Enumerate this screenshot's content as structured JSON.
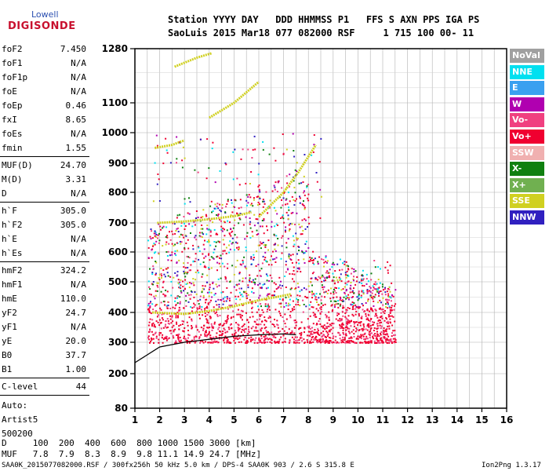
{
  "logo": {
    "line1": "Lowell",
    "line2": "DIGISONDE"
  },
  "header": {
    "line1": "Station YYYY DAY   DDD HHMMSS P1   FFS S AXN PPS IGA PS",
    "line2": "SaoLuis 2015 Mar18 077 082000 RSF     1 715 100 00- 11"
  },
  "params_a": [
    {
      "label": "foF2",
      "value": "7.450"
    },
    {
      "label": "foF1",
      "value": "N/A"
    },
    {
      "label": "foF1p",
      "value": "N/A"
    },
    {
      "label": "foE",
      "value": "N/A"
    },
    {
      "label": "foEp",
      "value": "0.46"
    },
    {
      "label": "fxI",
      "value": "8.65"
    },
    {
      "label": "foEs",
      "value": "N/A"
    },
    {
      "label": "fmin",
      "value": "1.55"
    }
  ],
  "params_b": [
    {
      "label": "MUF(D)",
      "value": "24.70"
    },
    {
      "label": "M(D)",
      "value": "3.31"
    },
    {
      "label": "D",
      "value": "N/A"
    }
  ],
  "params_c": [
    {
      "label": "h`F",
      "value": "305.0"
    },
    {
      "label": "h`F2",
      "value": "305.0"
    },
    {
      "label": "h`E",
      "value": "N/A"
    },
    {
      "label": "h`Es",
      "value": "N/A"
    }
  ],
  "params_d": [
    {
      "label": "hmF2",
      "value": "324.2"
    },
    {
      "label": "hmF1",
      "value": "N/A"
    },
    {
      "label": "hmE",
      "value": "110.0"
    },
    {
      "label": "yF2",
      "value": "24.7"
    },
    {
      "label": "yF1",
      "value": "N/A"
    },
    {
      "label": "yE",
      "value": "20.0"
    },
    {
      "label": "B0",
      "value": "37.7"
    },
    {
      "label": "B1",
      "value": "1.00"
    }
  ],
  "clevel": {
    "label": "C-level",
    "value": "44"
  },
  "scaling": [
    "Auto:",
    "Artist5",
    "500200"
  ],
  "legend": [
    {
      "label": "NoVal",
      "color": "#a0a0a0"
    },
    {
      "label": "NNE",
      "color": "#00e0f0"
    },
    {
      "label": "E",
      "color": "#3aa0f0"
    },
    {
      "label": "W",
      "color": "#b000b0"
    },
    {
      "label": "Vo-",
      "color": "#f04080"
    },
    {
      "label": "Vo+",
      "color": "#f00030"
    },
    {
      "label": "SSW",
      "color": "#f0b0b0"
    },
    {
      "label": "X-",
      "color": "#108010"
    },
    {
      "label": "X+",
      "color": "#70b050"
    },
    {
      "label": "SSE",
      "color": "#d0d020"
    },
    {
      "label": "NNW",
      "color": "#3020c0"
    }
  ],
  "yticks": [
    "1280",
    "1100",
    "1000",
    "900",
    "800",
    "700",
    "600",
    "500",
    "400",
    "300",
    "200",
    "80"
  ],
  "xticks": [
    "1",
    "2",
    "3",
    "4",
    "5",
    "6",
    "7",
    "8",
    "9",
    "10",
    "11",
    "12",
    "13",
    "14",
    "15",
    "16"
  ],
  "dmuf": {
    "d_line": "D     100  200  400  600  800 1000 1500 3000 [km]",
    "muf_line": "MUF   7.8  7.9  8.3  8.9  9.8 11.1 14.9 24.7 [MHz]"
  },
  "footer": {
    "left": "SAA0K_2015077082000.RSF / 300fx256h 50 kHz 5.0 km / DPS-4 SAA0K 903 / 2.6 S 315.8 E",
    "right": "Ion2Png 1.3.17"
  }
}
